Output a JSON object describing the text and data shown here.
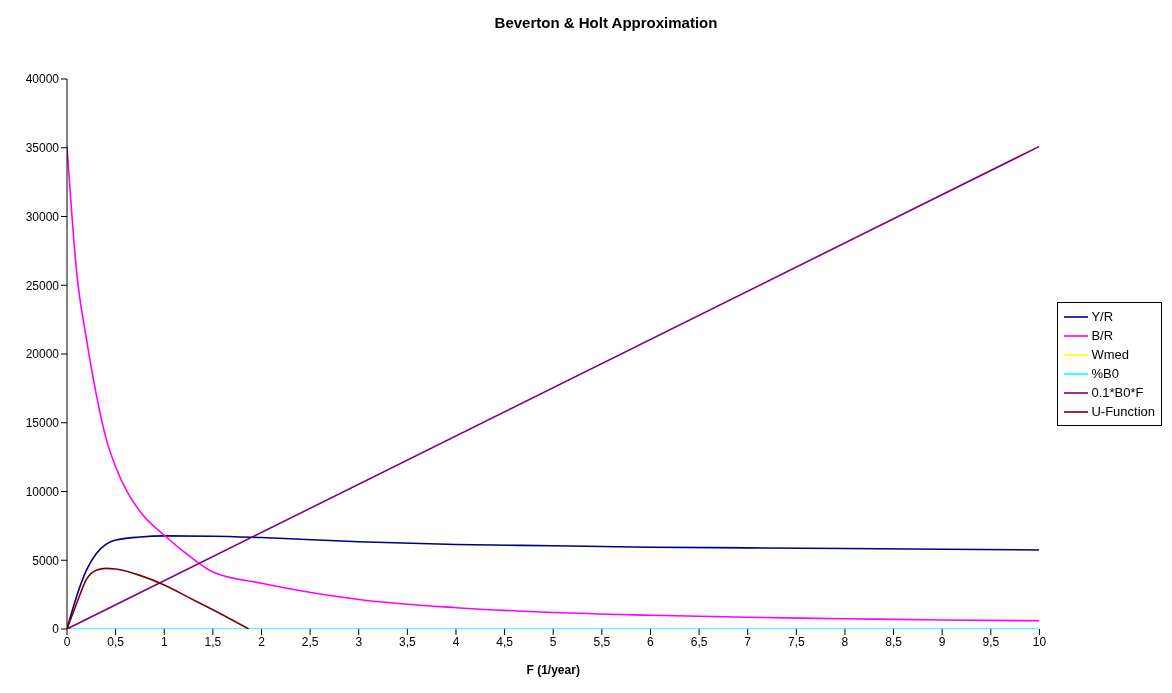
{
  "chart_data": {
    "type": "line",
    "title": "Beverton & Holt Approximation",
    "xlabel": "F (1/year)",
    "xlim": [
      0,
      10
    ],
    "xticks": [
      0,
      {
        "value": 0.5,
        "label": "0,5"
      },
      1,
      {
        "value": 1.5,
        "label": "1,5"
      },
      2,
      {
        "value": 2.5,
        "label": "2,5"
      },
      3,
      {
        "value": 3.5,
        "label": "3,5"
      },
      4,
      {
        "value": 4.5,
        "label": "4,5"
      },
      5,
      {
        "value": 5.5,
        "label": "5,5"
      },
      6,
      {
        "value": 6.5,
        "label": "6,5"
      },
      7,
      {
        "value": 7.5,
        "label": "7,5"
      },
      8,
      {
        "value": 8.5,
        "label": "8,5"
      },
      9,
      {
        "value": 9.5,
        "label": "9,5"
      },
      10
    ],
    "ylim": [
      0,
      40000
    ],
    "yticks": [
      0,
      5000,
      10000,
      15000,
      20000,
      25000,
      30000,
      35000,
      40000
    ],
    "legend": "right",
    "marker": "none",
    "line_style": "solid",
    "series": [
      {
        "name": "Y/R",
        "color": "#000080",
        "x": [
          0,
          0.1,
          0.2,
          0.3,
          0.4,
          0.5,
          0.75,
          1,
          1.5,
          2,
          3,
          4,
          5,
          6,
          7,
          8,
          9,
          10
        ],
        "values": [
          0,
          2400,
          4280,
          5480,
          6150,
          6470,
          6690,
          6770,
          6750,
          6650,
          6350,
          6150,
          6050,
          5950,
          5900,
          5850,
          5800,
          5750
        ]
      },
      {
        "name": "B/R",
        "color": "#ff00ff",
        "x": [
          0,
          0.1,
          0.2,
          0.3,
          0.4,
          0.5,
          0.75,
          1,
          1.25,
          1.5,
          2,
          3,
          4,
          5,
          6,
          7,
          8,
          9,
          10
        ],
        "values": [
          35100,
          25900,
          21100,
          17100,
          13900,
          11800,
          8560,
          6820,
          5350,
          4140,
          3330,
          2150,
          1550,
          1200,
          1000,
          850,
          750,
          650,
          600
        ]
      },
      {
        "name": "Wmed",
        "color": "#ffff00"
      },
      {
        "name": "%B0",
        "color": "#00ffff",
        "x": [
          0,
          10
        ],
        "values": [
          0,
          0
        ]
      },
      {
        "name": "0.1*B0*F",
        "color": "#800080",
        "x": [
          0,
          10
        ],
        "values": [
          0,
          35100
        ]
      },
      {
        "name": "U-Function",
        "color": "#800000",
        "x": [
          0,
          0.1,
          0.2,
          0.3,
          0.4,
          0.5,
          0.75,
          1,
          1.25,
          1.5,
          1.87
        ],
        "values": [
          0,
          1870,
          3610,
          4280,
          4410,
          4360,
          3900,
          3200,
          2300,
          1400,
          0
        ]
      }
    ]
  }
}
